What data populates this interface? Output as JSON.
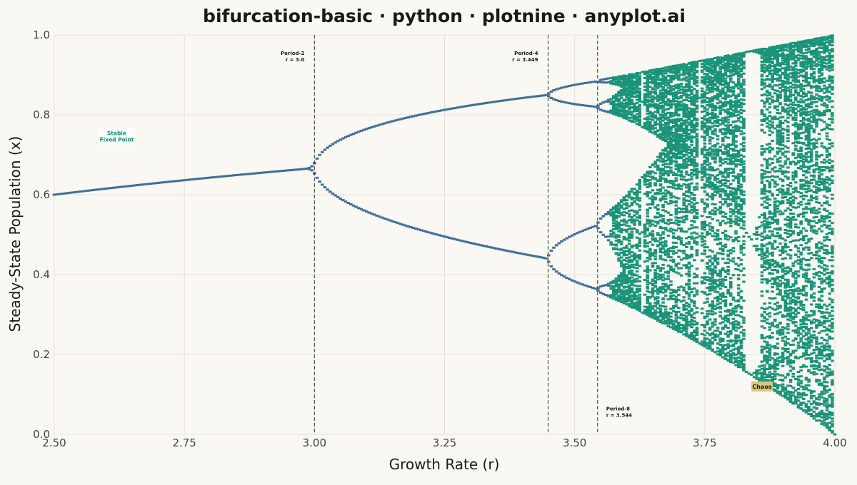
{
  "chart_data": {
    "type": "scatter",
    "title": "bifurcation-basic · python · plotnine · anyplot.ai",
    "xlabel": "Growth Rate (r)",
    "ylabel": "Steady-State Population (x)",
    "xlim": [
      2.5,
      4.0
    ],
    "ylim": [
      0.0,
      1.0
    ],
    "x_ticks": [
      "2.50",
      "2.75",
      "3.00",
      "3.25",
      "3.50",
      "3.75",
      "4.00"
    ],
    "x_tick_values": [
      2.5,
      2.75,
      3.0,
      3.25,
      3.5,
      3.75,
      4.0
    ],
    "y_ticks": [
      "0.0",
      "0.2",
      "0.4",
      "0.6",
      "0.8",
      "1.0"
    ],
    "y_tick_values": [
      0.0,
      0.2,
      0.4,
      0.6,
      0.8,
      1.0
    ],
    "grid": true,
    "model": "logistic map x(n+1) = r·x(n)·(1 − x(n))",
    "r_step": 0.005,
    "colors": {
      "background": "#FAF8F2",
      "stable_branch": "#3f6f9a",
      "chaotic_branch": "#1a9479",
      "threshold_line": "#555555",
      "chaos_label_fill": "#d8c67a",
      "stable_label_text": "#0e8f74"
    },
    "thresholds": [
      {
        "r": 3.0,
        "label_line1": "Period-2",
        "label_line2": "r = 3.0",
        "label_y": 0.95
      },
      {
        "r": 3.449,
        "label_line1": "Period-4",
        "label_line2": "r = 3.449",
        "label_y": 0.95
      },
      {
        "r": 3.544,
        "label_line1": "Period-8",
        "label_line2": "r = 3.544",
        "label_y": 0.06
      }
    ],
    "annotations": [
      {
        "text_line1": "Stable",
        "text_line2": "Fixed Point",
        "r": 2.62,
        "y": 0.74
      },
      {
        "text": "Chaos",
        "r": 3.86,
        "y": 0.12
      }
    ]
  }
}
